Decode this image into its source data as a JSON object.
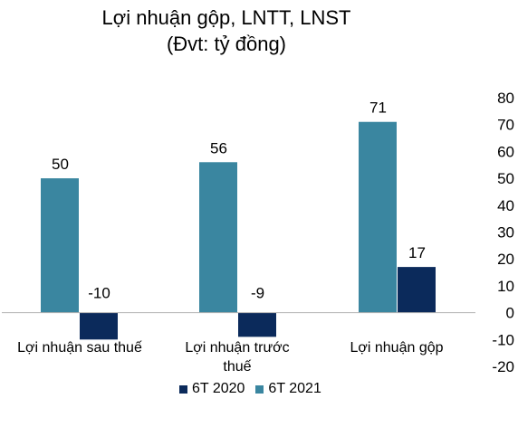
{
  "chart_data": {
    "type": "bar",
    "title": "Lợi nhuận gộp, LNTT,  LNST",
    "subtitle": "(Đvt: tỷ đồng)",
    "categories": [
      "Lợi nhuận  sau thuế",
      "Lợi nhuận  trước thuế",
      "Lợi nhuận  gộp"
    ],
    "series": [
      {
        "name": "6T 2020",
        "color": "#0b2a5b",
        "values": [
          -10,
          -9,
          17
        ]
      },
      {
        "name": "6T 2021",
        "color": "#3a86a0",
        "values": [
          50,
          56,
          71
        ]
      }
    ],
    "ylim": [
      -20,
      80
    ],
    "yticks": [
      80,
      70,
      60,
      50,
      40,
      30,
      20,
      10,
      0,
      -10,
      -20
    ],
    "y_axis_position": "right",
    "legend_position": "bottom",
    "grid": false
  }
}
